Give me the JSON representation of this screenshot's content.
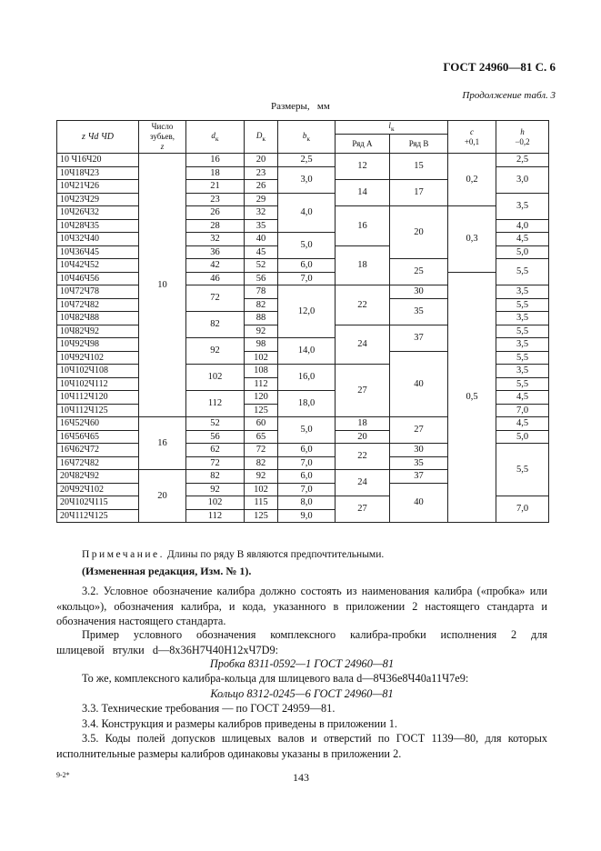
{
  "header": {
    "title": "ГОСТ 24960—81 С. 6",
    "continuation": "Продолжение табл. 3",
    "units": "Размеры,   мм"
  },
  "table": {
    "head": {
      "designation": "z Чd ЧD",
      "teeth": [
        "Число",
        "зубьев,",
        "z"
      ],
      "dk": {
        "symbol": "d",
        "index": "к"
      },
      "Dk": {
        "symbol": "D",
        "index": "к"
      },
      "bk": {
        "symbol": "b",
        "index": "к"
      },
      "lk": {
        "symbol": "l",
        "index": "к"
      },
      "row_a": "Ряд А",
      "row_b": "Ряд В",
      "c": [
        "c",
        "+0,1"
      ],
      "h": [
        "h",
        "−0,2"
      ]
    },
    "columns": [
      [
        "10 Ч16Ч20",
        "10Ч18Ч23",
        "10Ч21Ч26",
        "10Ч23Ч29",
        "10Ч26Ч32",
        "10Ч28Ч35",
        "10Ч32Ч40",
        "10Ч36Ч45",
        "10Ч42Ч52",
        "10Ч46Ч56",
        "10Ч72Ч78",
        "10Ч72Ч82",
        "10Ч82Ч88",
        "10Ч82Ч92",
        "10Ч92Ч98",
        "10Ч92Ч102",
        "10Ч102Ч108",
        "10Ч102Ч112",
        "10Ч112Ч120",
        "10Ч112Ч125",
        "16Ч52Ч60",
        "16Ч56Ч65",
        "16Ч62Ч72",
        "16Ч72Ч82",
        "20Ч82Ч92",
        "20Ч92Ч102",
        "20Ч102Ч115",
        "20Ч112Ч125"
      ],
      [
        "10",
        "16",
        "20"
      ],
      [
        "16",
        "18",
        "21",
        "23",
        "26",
        "28",
        "32",
        "36",
        "42",
        "46",
        "72",
        "82",
        "92",
        "102",
        "112",
        "52",
        "56",
        "62",
        "72",
        "82",
        "92",
        "102",
        "112"
      ],
      [
        "20",
        "23",
        "26",
        "29",
        "32",
        "35",
        "40",
        "45",
        "52",
        "56",
        "78",
        "82",
        "88",
        "92",
        "98",
        "102",
        "108",
        "112",
        "120",
        "125",
        "60",
        "65",
        "72",
        "82",
        "92",
        "102",
        "115",
        "125"
      ],
      [
        "2,5",
        "3,0",
        "4,0",
        "5,0",
        "6,0",
        "7,0",
        "12,0",
        "14,0",
        "16,0",
        "18,0",
        "5,0",
        "6,0",
        "7,0",
        "6,0",
        "7,0",
        "8,0",
        "9,0"
      ],
      [
        "12",
        "14",
        "16",
        "18",
        "22",
        "24",
        "27",
        "18",
        "20",
        "22",
        "24",
        "27"
      ],
      [
        "15",
        "17",
        "20",
        "25",
        "30",
        "35",
        "37",
        "40",
        "27",
        "30",
        "35",
        "37",
        "40"
      ],
      [
        "0,2",
        "0,3",
        "0,5"
      ],
      [
        "2,5",
        "3,0",
        "3,5",
        "4,0",
        "4,5",
        "5,0",
        "5,5",
        "3,5",
        "5,5",
        "3,5",
        "5,5",
        "3,5",
        "5,5",
        "3,5",
        "5,5",
        "4,5",
        "7,0",
        "4,5",
        "5,0",
        "5,5",
        "7,0"
      ]
    ]
  },
  "note": {
    "label": "Примечание.",
    "text": "Длины по ряду В являются предпочтительными.",
    "revision": "(Измененная редакция, Изм. № 1)."
  },
  "body": {
    "p32": "3.2. Условное обозначение калибра должно состоять из наименования калибра («пробка» или «кольцо»), обозначения калибра, и кода, указанного в приложении 2 настоящего стандарта и обозначения настоящего стандарта.",
    "example": "Пример условного обозначения комплексного калибра-пробки исполнения 2 для шлицевой втулки d—8x36H7Ч40H12xЧ7D9:",
    "plug": "Пробка 8311-0592—1 ГОСТ 24960—81",
    "same": "То же, комплексного калибра-кольца для шлицевого вала d—8Ч36e8Ч40a11Ч7e9:",
    "ring": "Кольцо 8312-0245—6 ГОСТ 24960—81",
    "p33": "3.3. Технические требования — по ГОСТ 24959—81.",
    "p34": "3.4. Конструкция и размеры калибров приведены в приложении 1.",
    "p35": "3.5. Коды полей допусков шлицевых валов и отверстий по ГОСТ 1139—80, для которых исполнительные размеры калибров одинаковы указаны в приложении 2."
  },
  "footer": {
    "mark": "9-2*",
    "page": "143"
  }
}
